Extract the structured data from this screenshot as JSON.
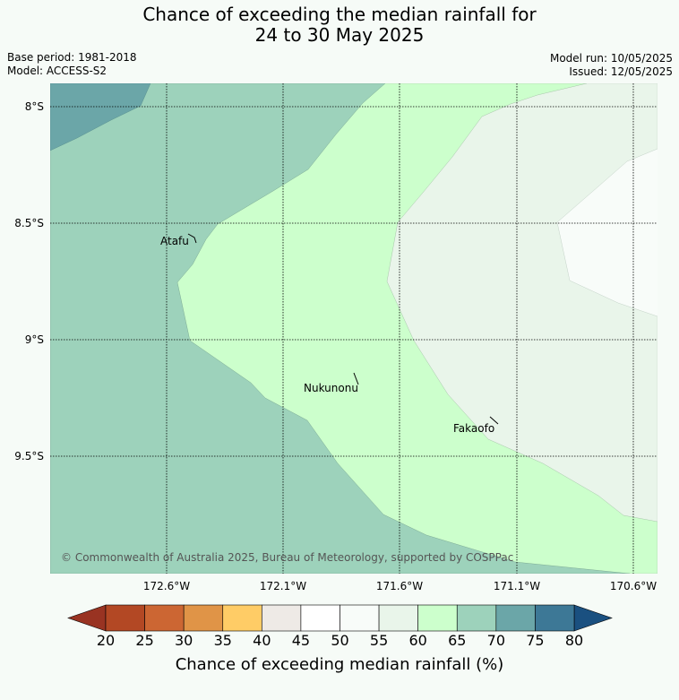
{
  "title_line1": "Chance of exceeding the median rainfall for",
  "title_line2": "24 to 30 May 2025",
  "base_period": "Base period: 1981-2018",
  "model": "Model: ACCESS-S2",
  "model_run": "Model run: 10/05/2025",
  "issued": "Issued: 12/05/2025",
  "copyright": "© Commonwealth of Australia 2025, Bureau of Meteorology, supported by COSPPac",
  "lat_labels": [
    "8°S",
    "8.5°S",
    "9°S",
    "9.5°S"
  ],
  "lon_labels": [
    "172.6°W",
    "172.1°W",
    "171.6°W",
    "171.1°W",
    "170.6°W"
  ],
  "places": {
    "atafu": "Atafu",
    "nukunonu": "Nukunonu",
    "fakaofo": "Fakaofo"
  },
  "colorbar": {
    "title": "Chance of exceeding median rainfall (%)",
    "ticks": [
      "20",
      "25",
      "30",
      "35",
      "40",
      "45",
      "50",
      "55",
      "60",
      "65",
      "70",
      "75",
      "80"
    ],
    "colors": [
      "#b34824",
      "#cc6633",
      "#e09447",
      "#ffcc66",
      "#eeeae6",
      "#ffffff",
      "#f8fcf9",
      "#e9f5ea",
      "#ccffcc",
      "#9dd2bb",
      "#6ba6a8",
      "#3d7896"
    ],
    "low_extend_color": "#993322",
    "high_extend_color": "#1a5080"
  },
  "legend_colors": {
    "band_70_75": "#6ba6a8",
    "band_65_70": "#9dd2bb",
    "band_60_65": "#ccffcc",
    "band_55_60": "#e9f5ea",
    "band_50_55": "#f8fcf9"
  }
}
